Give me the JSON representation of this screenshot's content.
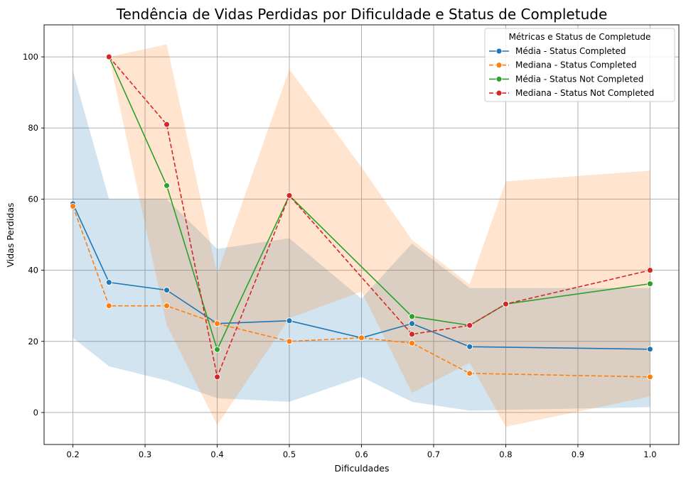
{
  "chart_data": {
    "type": "line",
    "title": "Tendência de Vidas Perdidas por Dificuldade e Status de Completude",
    "xlabel": "Dificuldades",
    "ylabel": "Vidas Perdidas",
    "xlim": [
      0.16,
      1.04
    ],
    "ylim": [
      -9,
      109
    ],
    "xticks": [
      0.2,
      0.3,
      0.4,
      0.5,
      0.6,
      0.7,
      0.8,
      0.9,
      1.0
    ],
    "xtick_labels": [
      "0.2",
      "0.3",
      "0.4",
      "0.5",
      "0.6",
      "0.7",
      "0.8",
      "0.9",
      "1.0"
    ],
    "yticks": [
      0,
      20,
      40,
      60,
      80,
      100
    ],
    "ytick_labels": [
      "0",
      "20",
      "40",
      "60",
      "80",
      "100"
    ],
    "grid": true,
    "legend": {
      "title": "Métricas e Status de Completude",
      "placement": "top-right"
    },
    "bands": [
      {
        "status": "Completed",
        "color": "#1f77b4",
        "x": [
          0.2,
          0.25,
          0.33,
          0.4,
          0.5,
          0.6,
          0.67,
          0.75,
          1.0
        ],
        "upper": [
          96,
          60,
          60,
          46,
          49,
          32,
          47.5,
          35,
          35
        ],
        "lower": [
          21,
          13,
          9,
          4,
          3,
          10,
          3,
          0.5,
          1.5
        ]
      },
      {
        "status": "Not Completed",
        "color": "#ff7f0e",
        "x": [
          0.25,
          0.33,
          0.4,
          0.5,
          0.6,
          0.67,
          0.75,
          0.8,
          1.0
        ],
        "upper": [
          100,
          103.5,
          39,
          96.5,
          69,
          48.5,
          36,
          65,
          68
        ],
        "lower": [
          100,
          24.5,
          -3.5,
          26.5,
          34,
          5.5,
          14,
          -4,
          4.5
        ]
      }
    ],
    "series": [
      {
        "name": "Média - Status Completed",
        "color": "#1f77b4",
        "dashed": false,
        "x": [
          0.2,
          0.25,
          0.33,
          0.4,
          0.5,
          0.6,
          0.67,
          0.75,
          1.0
        ],
        "y": [
          58.7,
          36.6,
          34.4,
          25.0,
          25.8,
          21.0,
          25.0,
          18.5,
          17.8
        ]
      },
      {
        "name": "Mediana - Status Completed",
        "color": "#ff7f0e",
        "dashed": true,
        "x": [
          0.2,
          0.25,
          0.33,
          0.4,
          0.5,
          0.6,
          0.67,
          0.75,
          1.0
        ],
        "y": [
          58.0,
          30.0,
          30.0,
          25.0,
          20.0,
          21.0,
          19.5,
          11.0,
          10.0
        ]
      },
      {
        "name": "Média - Status Not Completed",
        "color": "#2ca02c",
        "dashed": false,
        "x": [
          0.25,
          0.33,
          0.4,
          0.5,
          0.67,
          0.75,
          0.8,
          1.0
        ],
        "y": [
          100.0,
          63.8,
          17.7,
          61.0,
          27.0,
          24.5,
          30.5,
          36.2
        ]
      },
      {
        "name": "Mediana - Status Not Completed",
        "color": "#d62728",
        "dashed": true,
        "x": [
          0.25,
          0.33,
          0.4,
          0.5,
          0.67,
          0.75,
          0.8,
          1.0
        ],
        "y": [
          100.0,
          81.0,
          10.0,
          61.0,
          22.0,
          24.5,
          30.5,
          40.0
        ]
      }
    ]
  }
}
